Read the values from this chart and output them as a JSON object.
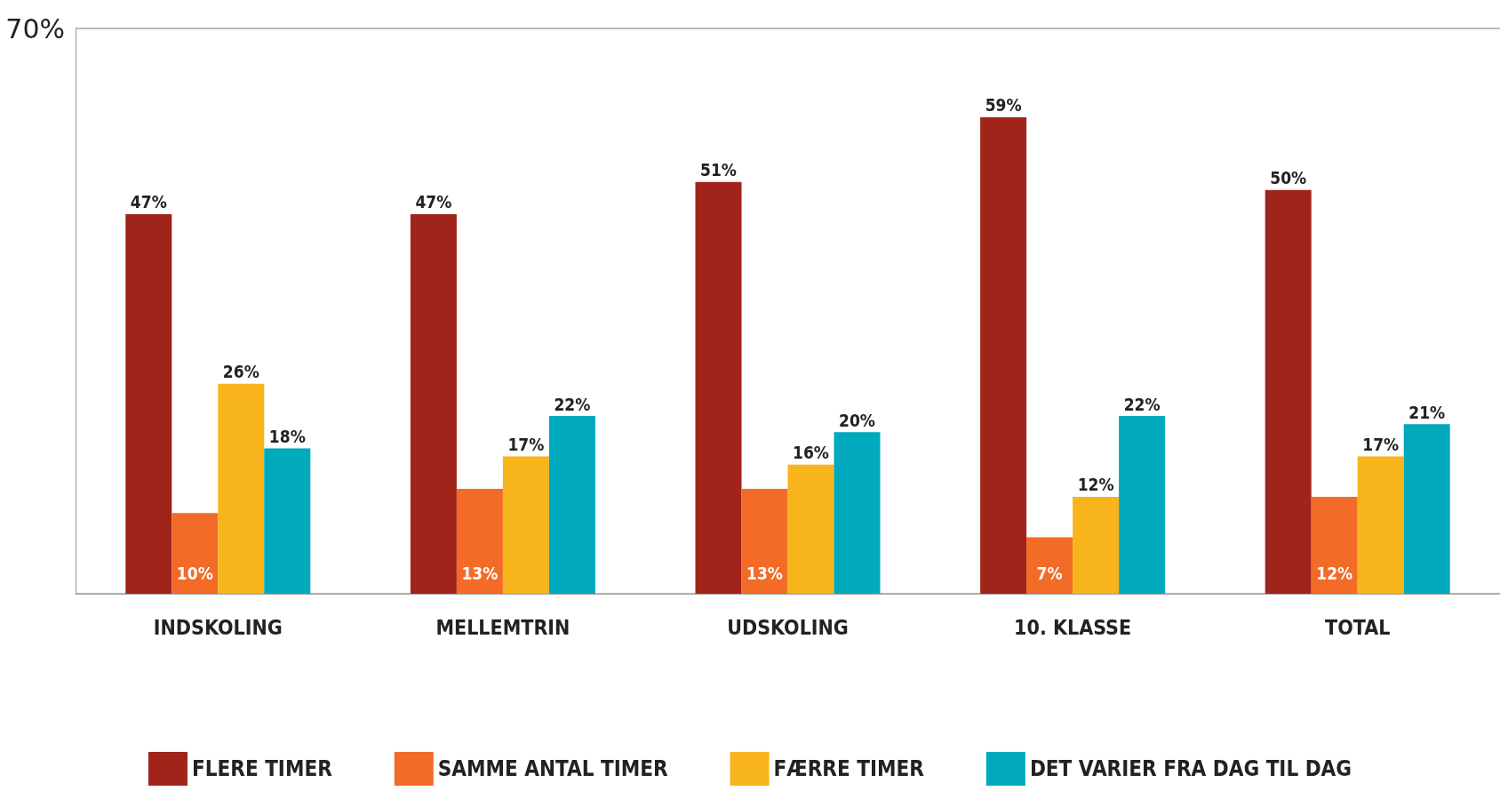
{
  "chart_data": {
    "type": "bar",
    "categories": [
      "INDSKOLING",
      "MELLEMTRIN",
      "UDSKOLING",
      "10. KLASSE",
      "TOTAL"
    ],
    "series": [
      {
        "name": "FLERE TIMER",
        "color": "#a0241a",
        "values": [
          47,
          47,
          51,
          59,
          50
        ],
        "value_labels": [
          "47%",
          "47%",
          "51%",
          "59%",
          "50%"
        ]
      },
      {
        "name": "SAMME ANTAL TIMER",
        "color": "#f26b27",
        "values": [
          10,
          13,
          13,
          7,
          12
        ],
        "value_labels": [
          "10%",
          "13%",
          "13%",
          "7%",
          "12%"
        ]
      },
      {
        "name": "FÆRRE TIMER",
        "color": "#f8b41b",
        "values": [
          26,
          17,
          16,
          12,
          17
        ],
        "value_labels": [
          "26%",
          "17%",
          "16%",
          "12%",
          "17%"
        ]
      },
      {
        "name": "DET VARIER FRA DAG TIL DAG",
        "color": "#00a9bb",
        "values": [
          18,
          22,
          20,
          22,
          21
        ],
        "value_labels": [
          "18%",
          "22%",
          "20%",
          "22%",
          "21%"
        ]
      }
    ],
    "ylim": [
      0,
      70
    ],
    "yticks": [
      {
        "value": 70,
        "label": "70%"
      }
    ],
    "grid": "y",
    "legend": "bottom"
  }
}
